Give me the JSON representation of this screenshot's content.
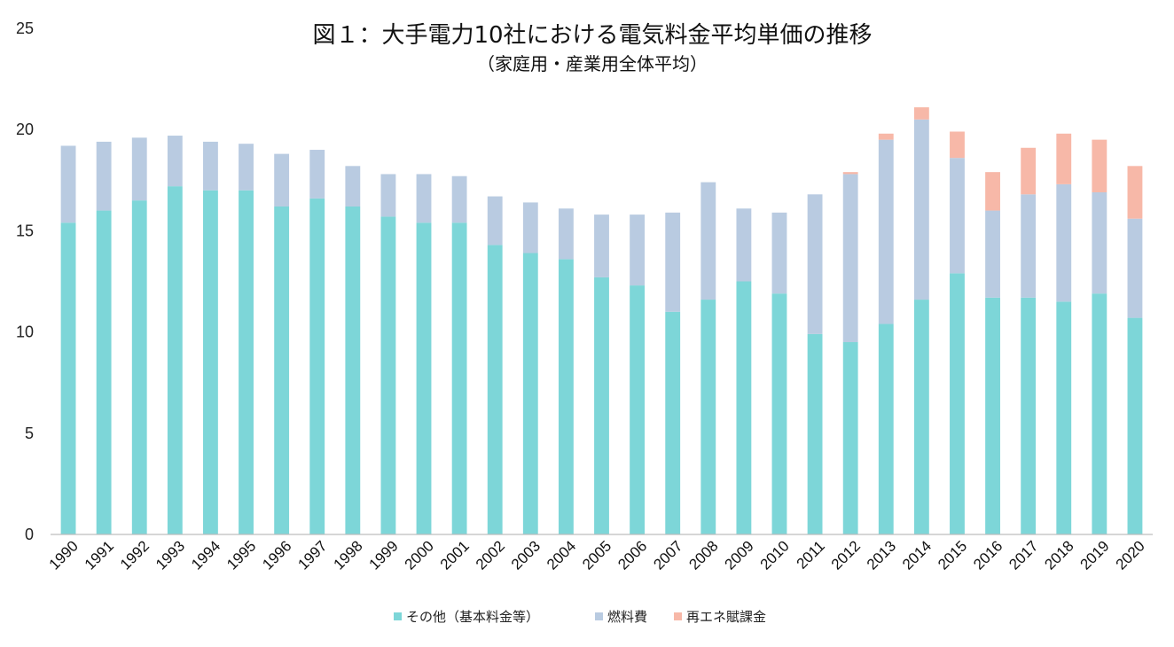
{
  "chart_data": {
    "type": "bar",
    "stacked": true,
    "title": "図１：大手電力10社における電気料金平均単価の推移",
    "subtitle": "（家庭用・産業用全体平均）",
    "xlabel": "",
    "ylabel": "",
    "ylim": [
      0,
      25
    ],
    "yticks": [
      0,
      5,
      10,
      15,
      20,
      25
    ],
    "grid": false,
    "legend_position": "bottom",
    "categories": [
      "1990",
      "1991",
      "1992",
      "1993",
      "1994",
      "1995",
      "1996",
      "1997",
      "1998",
      "1999",
      "2000",
      "2001",
      "2002",
      "2003",
      "2004",
      "2005",
      "2006",
      "2007",
      "2008",
      "2009",
      "2010",
      "2011",
      "2012",
      "2013",
      "2014",
      "2015",
      "2016",
      "2017",
      "2018",
      "2019",
      "2020"
    ],
    "series": [
      {
        "name": "その他（基本料金等）",
        "color": "#7dd6d8",
        "values": [
          15.4,
          16.0,
          16.5,
          17.2,
          17.0,
          17.0,
          16.2,
          16.6,
          16.2,
          15.7,
          15.4,
          15.4,
          14.3,
          13.9,
          13.6,
          12.7,
          12.3,
          11.0,
          11.6,
          12.5,
          11.9,
          9.9,
          9.5,
          10.4,
          11.6,
          12.9,
          11.7,
          11.7,
          11.5,
          11.9,
          10.7
        ]
      },
      {
        "name": "燃料費",
        "color": "#b9cbe1",
        "values": [
          3.8,
          3.4,
          3.1,
          2.5,
          2.4,
          2.3,
          2.6,
          2.4,
          2.0,
          2.1,
          2.4,
          2.3,
          2.4,
          2.5,
          2.5,
          3.1,
          3.5,
          4.9,
          5.8,
          3.6,
          4.0,
          6.9,
          8.3,
          9.1,
          8.9,
          5.7,
          4.3,
          5.1,
          5.8,
          5.0,
          4.9
        ]
      },
      {
        "name": "再エネ賦課金",
        "color": "#f7b8a8",
        "values": [
          0,
          0,
          0,
          0,
          0,
          0,
          0,
          0,
          0,
          0,
          0,
          0,
          0,
          0,
          0,
          0,
          0,
          0,
          0,
          0,
          0,
          0,
          0.1,
          0.3,
          0.6,
          1.3,
          1.9,
          2.3,
          2.5,
          2.6,
          2.6
        ]
      }
    ]
  }
}
